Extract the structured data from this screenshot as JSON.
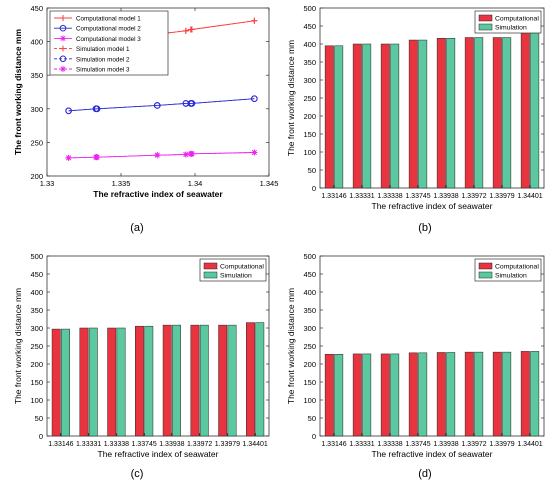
{
  "figure": {
    "colors": {
      "computational": "#e8343f",
      "simulation": "#5cc8a0",
      "model1": "#ff3b3b",
      "model2": "#2b2bd6",
      "model3": "#ee22ee",
      "axis": "#333333",
      "grid": "#dddddd"
    }
  },
  "chart_data": [
    {
      "panel_label": "(a)",
      "type": "line",
      "xlabel": "The refractive index of seawater",
      "ylabel": "The front working distance mm",
      "xlim": [
        1.33,
        1.345
      ],
      "ylim": [
        200,
        450
      ],
      "xticks": [
        "1.33",
        "1.335",
        "1.34",
        "1.345"
      ],
      "yticks": [
        "200",
        "250",
        "300",
        "350",
        "400",
        "450"
      ],
      "x": [
        1.33146,
        1.33331,
        1.33338,
        1.33745,
        1.33938,
        1.33972,
        1.33979,
        1.34401
      ],
      "legend_position": "top-left",
      "series": [
        {
          "name": "Computational model 1",
          "kind": "computational",
          "color_key": "model1",
          "marker": "plus",
          "values": [
            395,
            400,
            400,
            411,
            416,
            418,
            418,
            431
          ]
        },
        {
          "name": "Computational model 2",
          "kind": "computational",
          "color_key": "model2",
          "marker": "circle",
          "values": [
            297,
            300,
            300,
            305,
            308,
            308,
            308,
            315
          ]
        },
        {
          "name": "Computational model 3",
          "kind": "computational",
          "color_key": "model3",
          "marker": "star",
          "values": [
            227,
            228,
            228,
            231,
            232,
            233,
            233,
            235
          ]
        },
        {
          "name": "Simulation model 1",
          "kind": "simulation",
          "color_key": "model1",
          "marker": "plus",
          "values": [
            395,
            400,
            400,
            411,
            416,
            418,
            418,
            431
          ]
        },
        {
          "name": "Simulation model 2",
          "kind": "simulation",
          "color_key": "model2",
          "marker": "circle",
          "values": [
            297,
            300,
            300,
            305,
            308,
            308,
            308,
            315
          ]
        },
        {
          "name": "Simulation model 3",
          "kind": "simulation",
          "color_key": "model3",
          "marker": "star",
          "values": [
            227,
            228,
            228,
            231,
            232,
            233,
            233,
            235
          ]
        }
      ]
    },
    {
      "panel_label": "(b)",
      "type": "bar",
      "xlabel": "The refractive index of seawater",
      "ylabel": "The front working distance mm",
      "ylim": [
        0,
        500
      ],
      "yticks": [
        "0",
        "50",
        "100",
        "150",
        "200",
        "250",
        "300",
        "350",
        "400",
        "450",
        "500"
      ],
      "categories": [
        "1.33146",
        "1.33331",
        "1.33338",
        "1.33745",
        "1.33938",
        "1.33972",
        "1.33979",
        "1.34401"
      ],
      "legend_position": "top-right",
      "series": [
        {
          "name": "Computational",
          "color_key": "computational",
          "values": [
            395,
            400,
            400,
            411,
            416,
            418,
            418,
            431
          ]
        },
        {
          "name": "Simulation",
          "color_key": "simulation",
          "values": [
            395,
            400,
            400,
            411,
            416,
            418,
            418,
            431
          ]
        }
      ]
    },
    {
      "panel_label": "(c)",
      "type": "bar",
      "xlabel": "The refractive index of seawater",
      "ylabel": "The front working distance mm",
      "ylim": [
        0,
        500
      ],
      "yticks": [
        "0",
        "50",
        "100",
        "150",
        "200",
        "250",
        "300",
        "350",
        "400",
        "450",
        "500"
      ],
      "categories": [
        "1.33146",
        "1.33331",
        "1.33338",
        "1.33745",
        "1.33938",
        "1.33972",
        "1.33979",
        "1.34401"
      ],
      "legend_position": "top-right",
      "series": [
        {
          "name": "Computational",
          "color_key": "computational",
          "values": [
            297,
            300,
            300,
            305,
            308,
            308,
            308,
            315
          ]
        },
        {
          "name": "Simulation",
          "color_key": "simulation",
          "values": [
            297,
            300,
            300,
            305,
            308,
            308,
            308,
            315
          ]
        }
      ]
    },
    {
      "panel_label": "(d)",
      "type": "bar",
      "xlabel": "The refractive index of seawater",
      "ylabel": "The front working distance mm",
      "ylim": [
        0,
        500
      ],
      "yticks": [
        "0",
        "50",
        "100",
        "150",
        "200",
        "250",
        "300",
        "350",
        "400",
        "450",
        "500"
      ],
      "categories": [
        "1.33146",
        "1.33331",
        "1.33338",
        "1.33745",
        "1.33938",
        "1.33972",
        "1.33979",
        "1.34401"
      ],
      "legend_position": "top-right",
      "series": [
        {
          "name": "Computational",
          "color_key": "computational",
          "values": [
            227,
            228,
            228,
            231,
            232,
            233,
            233,
            235
          ]
        },
        {
          "name": "Simulation",
          "color_key": "simulation",
          "values": [
            227,
            228,
            228,
            231,
            232,
            233,
            233,
            235
          ]
        }
      ]
    }
  ]
}
